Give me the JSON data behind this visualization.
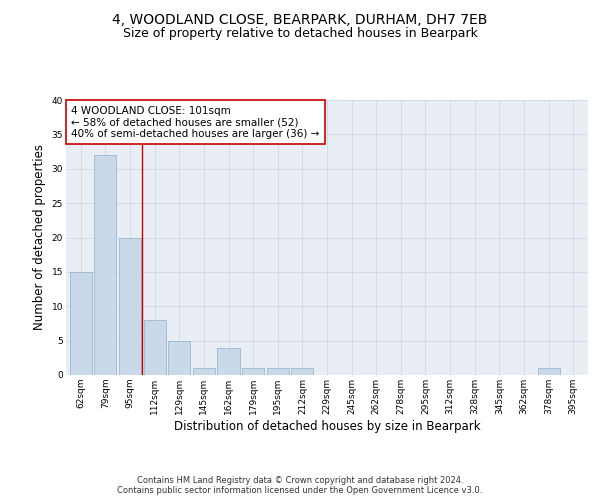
{
  "title": "4, WOODLAND CLOSE, BEARPARK, DURHAM, DH7 7EB",
  "subtitle": "Size of property relative to detached houses in Bearpark",
  "xlabel": "Distribution of detached houses by size in Bearpark",
  "ylabel": "Number of detached properties",
  "categories": [
    "62sqm",
    "79sqm",
    "95sqm",
    "112sqm",
    "129sqm",
    "145sqm",
    "162sqm",
    "179sqm",
    "195sqm",
    "212sqm",
    "229sqm",
    "245sqm",
    "262sqm",
    "278sqm",
    "295sqm",
    "312sqm",
    "328sqm",
    "345sqm",
    "362sqm",
    "378sqm",
    "395sqm"
  ],
  "values": [
    15,
    32,
    20,
    8,
    5,
    1,
    4,
    1,
    1,
    1,
    0,
    0,
    0,
    0,
    0,
    0,
    0,
    0,
    0,
    1,
    0
  ],
  "bar_color": "#c9d9e9",
  "bar_edge_color": "#8ab0cc",
  "vline_x": 2.5,
  "vline_color": "#cc0000",
  "annotation_text": "4 WOODLAND CLOSE: 101sqm\n← 58% of detached houses are smaller (52)\n40% of semi-detached houses are larger (36) →",
  "annotation_box_color": "#ffffff",
  "annotation_box_edge_color": "#cc0000",
  "ylim": [
    0,
    40
  ],
  "yticks": [
    0,
    5,
    10,
    15,
    20,
    25,
    30,
    35,
    40
  ],
  "grid_color": "#d0d8e0",
  "bg_color": "#e8eef4",
  "footer_text": "Contains HM Land Registry data © Crown copyright and database right 2024.\nContains public sector information licensed under the Open Government Licence v3.0.",
  "title_fontsize": 10,
  "subtitle_fontsize": 9,
  "xlabel_fontsize": 8.5,
  "ylabel_fontsize": 8.5,
  "tick_fontsize": 6.5,
  "annotation_fontsize": 7.5,
  "footer_fontsize": 6
}
